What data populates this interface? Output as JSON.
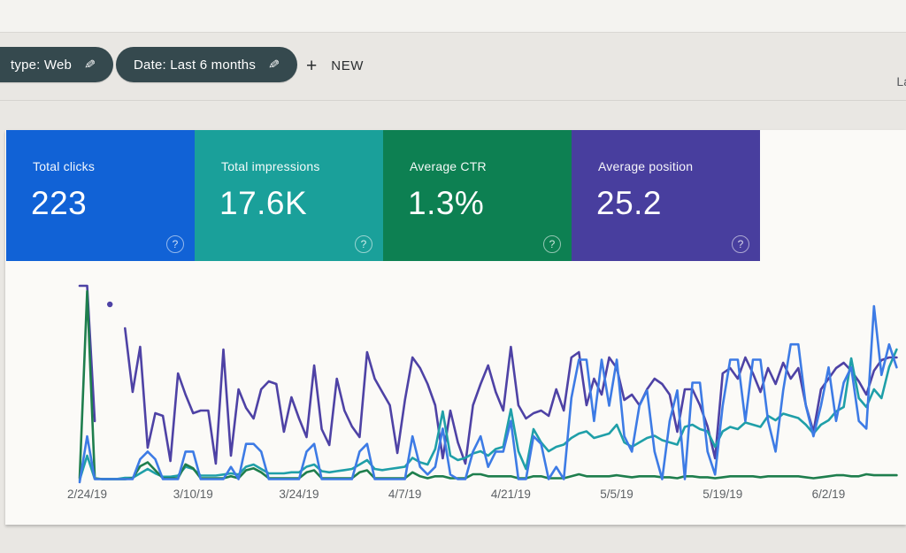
{
  "topbar": {
    "chip_type_label": "type: Web",
    "chip_date_label": "Date: Last 6 months",
    "edit_icon": "✎",
    "plus_icon": "+",
    "new_label": "NEW",
    "top_right_truncated": "La"
  },
  "cards": [
    {
      "label": "Total clicks",
      "value": "223",
      "color": "#1162d6"
    },
    {
      "label": "Total impressions",
      "value": "17.6K",
      "color": "#1aa09a"
    },
    {
      "label": "Average CTR",
      "value": "1.3%",
      "color": "#0d8052"
    },
    {
      "label": "Average position",
      "value": "25.2",
      "color": "#483e9e"
    }
  ],
  "help_icon": "?",
  "chart_data": {
    "type": "line",
    "xlabel": "",
    "ylabel": "",
    "grid": false,
    "legend": "none (series colors match metric cards)",
    "x_tick_labels": [
      "2/24/19",
      "3/10/19",
      "3/24/19",
      "4/7/19",
      "4/21/19",
      "5/5/19",
      "5/19/19",
      "6/2/19"
    ],
    "x_tick_day_indices": [
      1,
      15,
      29,
      43,
      57,
      71,
      85,
      99
    ],
    "days_total": 109,
    "series": [
      {
        "name": "Total clicks",
        "color": "#3d7be5",
        "ylim": [
          0,
          13
        ],
        "values": [
          0,
          3,
          0.2,
          0.2,
          0.2,
          0.2,
          0.2,
          0.2,
          1.5,
          2,
          1.5,
          0.2,
          0.2,
          0.2,
          2,
          2,
          0.2,
          0.2,
          0.2,
          0.2,
          1,
          0.2,
          2.5,
          2.5,
          2,
          0.2,
          0.2,
          0.2,
          0.2,
          0.2,
          2,
          2.5,
          0.2,
          0.2,
          0.2,
          0.2,
          0.2,
          2,
          2.5,
          0.2,
          0.2,
          0.2,
          0.2,
          0.2,
          3,
          1,
          0.5,
          1,
          3.5,
          0.5,
          0.2,
          0.2,
          2,
          3,
          1,
          2,
          2,
          4,
          0.2,
          0.2,
          3,
          2.5,
          0.2,
          1,
          0.2,
          5.5,
          8,
          8,
          4,
          8,
          5,
          8,
          3,
          2,
          5,
          6,
          2,
          0.2,
          4,
          6,
          0.2,
          6.5,
          6.5,
          2,
          0.5,
          5,
          8,
          8,
          4,
          8,
          8,
          4,
          2,
          6,
          9,
          9,
          5,
          3,
          5,
          7.5,
          4,
          6.5,
          7.5,
          4,
          3.5,
          11.5,
          7,
          9,
          7.5
        ]
      },
      {
        "name": "Total impressions",
        "color": "#1f9fa8",
        "ylim": [
          0,
          900
        ],
        "values": [
          10,
          120,
          15,
          15,
          15,
          15,
          20,
          20,
          40,
          60,
          40,
          25,
          25,
          30,
          70,
          60,
          30,
          30,
          30,
          35,
          40,
          35,
          70,
          80,
          60,
          40,
          40,
          40,
          45,
          45,
          70,
          80,
          50,
          45,
          50,
          55,
          60,
          80,
          100,
          60,
          55,
          60,
          65,
          70,
          110,
          90,
          80,
          150,
          320,
          120,
          100,
          110,
          130,
          140,
          120,
          150,
          160,
          330,
          140,
          60,
          240,
          180,
          140,
          160,
          170,
          200,
          220,
          230,
          200,
          210,
          220,
          260,
          180,
          160,
          180,
          200,
          210,
          190,
          180,
          170,
          250,
          260,
          240,
          230,
          160,
          230,
          250,
          240,
          270,
          260,
          250,
          300,
          280,
          310,
          300,
          290,
          260,
          220,
          260,
          280,
          320,
          340,
          560,
          380,
          340,
          420,
          380,
          520,
          600
        ]
      },
      {
        "name": "Average CTR",
        "color": "#1e7e4d",
        "ylim": [
          0,
          100
        ],
        "values": [
          2,
          96,
          2,
          1.5,
          1.5,
          1.5,
          1.5,
          2,
          8,
          10,
          6,
          2,
          2,
          2,
          9,
          7,
          2,
          2,
          2,
          2,
          3,
          2,
          6,
          7,
          5,
          2,
          2,
          2,
          2,
          2,
          5,
          6,
          2,
          2,
          2,
          2,
          2,
          5,
          6,
          2,
          2,
          2,
          2,
          2,
          5,
          3,
          2,
          3,
          3,
          2,
          2,
          2,
          4,
          4,
          3,
          3,
          3,
          3,
          2,
          2,
          3,
          3,
          2,
          2,
          2,
          3,
          4,
          3,
          3,
          3,
          3,
          3.5,
          3,
          2.5,
          3,
          3,
          3,
          2.5,
          2.5,
          2,
          3,
          3,
          2.5,
          2.5,
          2,
          2.5,
          3,
          3,
          3,
          3,
          2.5,
          3,
          3,
          3,
          3,
          3,
          2.5,
          2,
          2.5,
          3,
          3.5,
          3.5,
          3,
          3,
          4,
          3.5,
          3.5,
          3.5,
          3.5
        ]
      },
      {
        "name": "Average position",
        "color": "#4e42a5",
        "ylim": [
          0,
          75
        ],
        "values": [
          74,
          74,
          23,
          null,
          67,
          null,
          58,
          34,
          51,
          13,
          26,
          25,
          8,
          41,
          33,
          26,
          27,
          27,
          7,
          50,
          10,
          35,
          28,
          24,
          35,
          38,
          37,
          19,
          32,
          24,
          17,
          44,
          20,
          14,
          39,
          27,
          21,
          17,
          49,
          39,
          34,
          29,
          11,
          31,
          47,
          43,
          37,
          29,
          9,
          27,
          15,
          7,
          29,
          37,
          44,
          34,
          27,
          51,
          29,
          24,
          26,
          27,
          25,
          35,
          27,
          47,
          49,
          29,
          39,
          33,
          47,
          43,
          31,
          33,
          29,
          35,
          39,
          37,
          33,
          19,
          35,
          35,
          29,
          21,
          9,
          41,
          43,
          39,
          47,
          41,
          34,
          43,
          37,
          45,
          39,
          43,
          29,
          19,
          35,
          39,
          43,
          45,
          42,
          38,
          33,
          42,
          46,
          47,
          47
        ]
      }
    ]
  }
}
